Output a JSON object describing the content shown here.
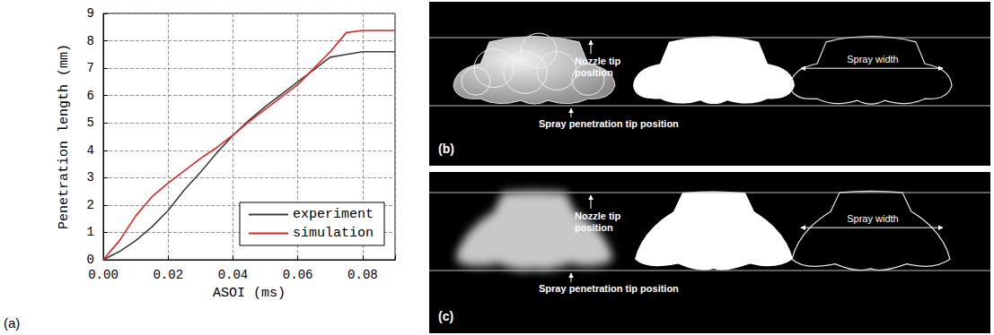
{
  "chart_data": {
    "type": "line",
    "x_label": "ASOI (ms)",
    "y_label": "Penetration length (mm)",
    "x": [
      0,
      0.005,
      0.01,
      0.015,
      0.02,
      0.025,
      0.03,
      0.035,
      0.04,
      0.045,
      0.05,
      0.055,
      0.06,
      0.065,
      0.07,
      0.075,
      0.08,
      0.085,
      0.09
    ],
    "series": [
      {
        "name": "experiment",
        "color": "#3c3c3c",
        "values": [
          0,
          0.3,
          0.7,
          1.2,
          1.8,
          2.55,
          3.2,
          3.9,
          4.55,
          5.1,
          5.6,
          6.05,
          6.5,
          6.95,
          7.4,
          7.5,
          7.6,
          7.6,
          7.6
        ]
      },
      {
        "name": "simulation",
        "color": "#e8231f",
        "values": [
          0,
          0.7,
          1.6,
          2.3,
          2.8,
          3.25,
          3.7,
          4.1,
          4.55,
          5.05,
          5.5,
          5.95,
          6.4,
          7.0,
          7.6,
          8.3,
          8.38,
          8.38,
          8.38
        ]
      }
    ],
    "xlim": [
      0,
      0.09
    ],
    "xticks": [
      {
        "value": 0,
        "label": "0.00"
      },
      {
        "value": 0.02,
        "label": "0.02"
      },
      {
        "value": 0.04,
        "label": "0.04"
      },
      {
        "value": 0.06,
        "label": "0.06"
      },
      {
        "value": 0.08,
        "label": "0.08"
      }
    ],
    "ylim": [
      0,
      9
    ],
    "yticks": [
      0,
      1,
      2,
      3,
      4,
      5,
      6,
      7,
      8,
      9
    ],
    "grid": true,
    "legend": "lower right"
  },
  "figure": {
    "panel_label": "(a)",
    "image_panels": [
      {
        "label": "(b)",
        "nozzle_label": "Nozzle tip position",
        "penetration_label": "Spray penetration tip position",
        "width_label": "Spray width"
      },
      {
        "label": "(c)",
        "nozzle_label": "Nozzle tip position",
        "penetration_label": "Spray penetration tip position",
        "width_label": "Spray width"
      }
    ]
  }
}
